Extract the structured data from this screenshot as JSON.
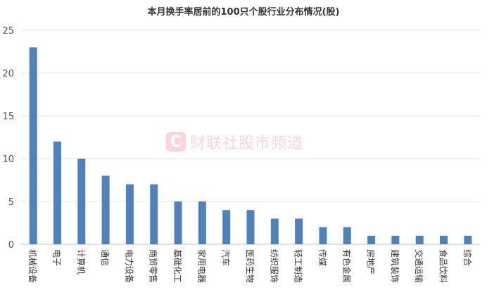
{
  "chart_data": {
    "type": "bar",
    "title": "本月换手率居前的100只个股行业分布情况(股)",
    "categories": [
      "机械设备",
      "电子",
      "计算机",
      "通信",
      "电力设备",
      "商贸零售",
      "基础化工",
      "家用电器",
      "汽车",
      "医药生物",
      "纺织服饰",
      "轻工制造",
      "传媒",
      "有色金属",
      "房地产",
      "建筑装饰",
      "交通运输",
      "食品饮料",
      "综合"
    ],
    "values": [
      23,
      12,
      10,
      8,
      7,
      7,
      5,
      5,
      4,
      4,
      3,
      3,
      2,
      2,
      1,
      1,
      1,
      1,
      1
    ],
    "ylim": [
      0,
      25
    ],
    "yticks": [
      0,
      5,
      10,
      15,
      20,
      25
    ],
    "grid": true,
    "bar_color": "#4f81bd"
  },
  "watermark": {
    "logo": "C",
    "text": "财联社股市频道"
  }
}
